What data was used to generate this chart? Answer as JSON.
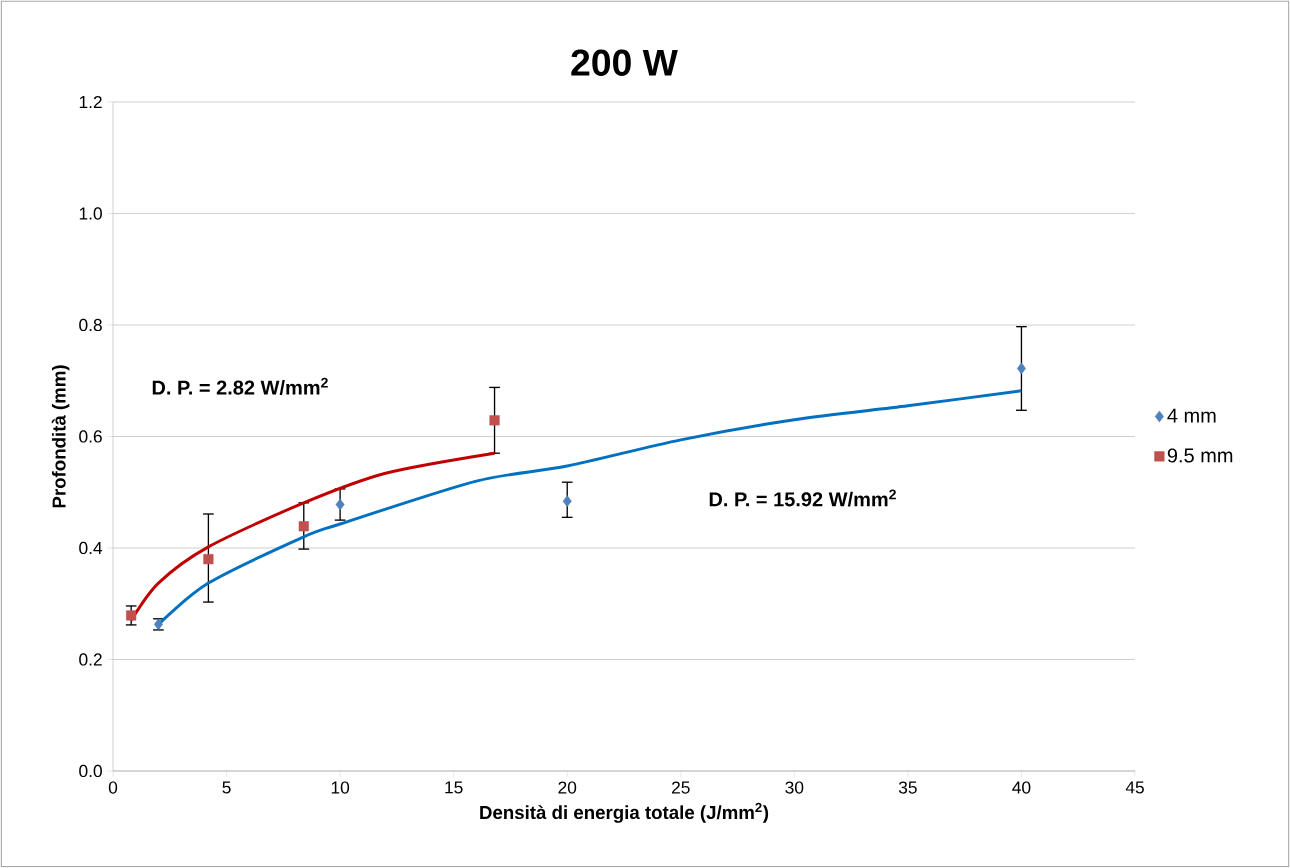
{
  "chart_data": {
    "type": "scatter",
    "title": "200 W",
    "xlabel": "Densità di energia totale (J/mm$^{2}$)",
    "ylabel": "Profondità (mm)",
    "xlim": [
      0,
      45
    ],
    "xticks": [
      0,
      5,
      10,
      15,
      20,
      25,
      30,
      35,
      40,
      45
    ],
    "ylim": [
      0,
      1.2
    ],
    "yticks": [
      {
        "value": 0,
        "label": "0.0"
      },
      {
        "value": 0.2,
        "label": "0.2"
      },
      {
        "value": 0.4,
        "label": "0.4"
      },
      {
        "value": 0.6,
        "label": "0.6"
      },
      {
        "value": 0.8,
        "label": "0.8"
      },
      {
        "value": 1.0,
        "label": "1.0"
      },
      {
        "value": 1.2,
        "label": "1.2"
      }
    ],
    "grid": "y",
    "legend": "right",
    "series": [
      {
        "name": "4 mm",
        "marker": "diamond",
        "color": "#4f81bd",
        "x": [
          2,
          10,
          20,
          40
        ],
        "values": [
          0.263,
          0.478,
          0.484,
          0.722
        ],
        "errors": [
          [
            0.253,
            0.273
          ],
          [
            0.45,
            0.506
          ],
          [
            0.455,
            0.518
          ],
          [
            0.647,
            0.797
          ]
        ]
      },
      {
        "name": "9.5 mm",
        "marker": "square",
        "color": "#c0504d",
        "x": [
          0.8,
          4.2,
          8.4,
          16.8
        ],
        "values": [
          0.279,
          0.38,
          0.439,
          0.629
        ],
        "errors": [
          [
            0.262,
            0.296
          ],
          [
            0.303,
            0.461
          ],
          [
            0.398,
            0.481
          ],
          [
            0.57,
            0.688
          ]
        ]
      },
      {
        "type": "line",
        "marker": "none",
        "color": "#0070c0",
        "x": [
          2,
          4.2,
          8.4,
          10,
          16,
          20,
          25,
          30,
          35,
          40
        ],
        "values": [
          0.263,
          0.337,
          0.42,
          0.443,
          0.52,
          0.547,
          0.594,
          0.63,
          0.655,
          0.682
        ]
      },
      {
        "type": "line",
        "marker": "none",
        "color": "#c00000",
        "x": [
          0.8,
          2,
          4.2,
          8.4,
          12,
          16.8
        ],
        "values": [
          0.27,
          0.337,
          0.402,
          0.481,
          0.534,
          0.57
        ]
      }
    ],
    "annotations": [
      "D. P. = 2.82 W/mm$^{2}$",
      "D. P. = 15.92 W/mm$^{2}$"
    ]
  }
}
